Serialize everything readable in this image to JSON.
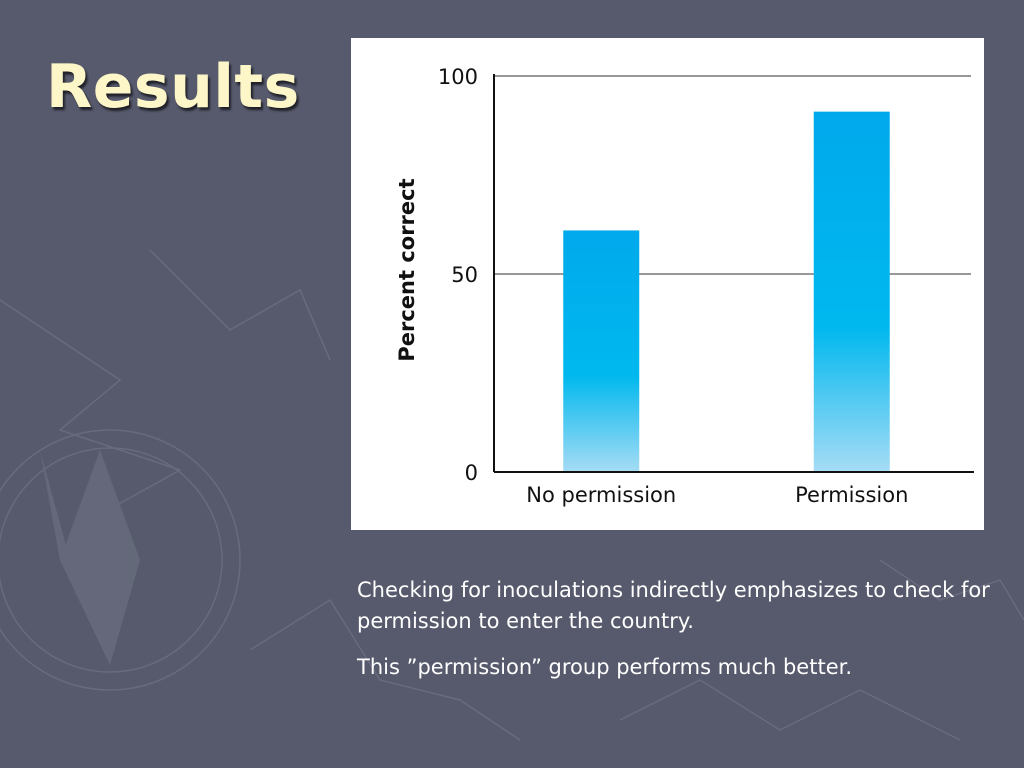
{
  "slide": {
    "title": "Results",
    "caption_lines": [
      "Checking for inoculations indirectly emphasizes to check for permission to enter the country.",
      "This ”permission” group performs much better."
    ]
  },
  "colors": {
    "background": "#575a6c",
    "title": "#fdf6c8",
    "bar_top": "#00a9ec",
    "bar_bottom": "#a6dcf5"
  },
  "chart_data": {
    "type": "bar",
    "categories": [
      "No permission",
      "Permission"
    ],
    "values": [
      61,
      91
    ],
    "ylabel": "Percent correct",
    "xlabel": "",
    "ylim": [
      0,
      100
    ],
    "yticks": [
      0,
      50,
      100
    ],
    "gridlines": [
      50,
      100
    ],
    "legend": "none"
  }
}
